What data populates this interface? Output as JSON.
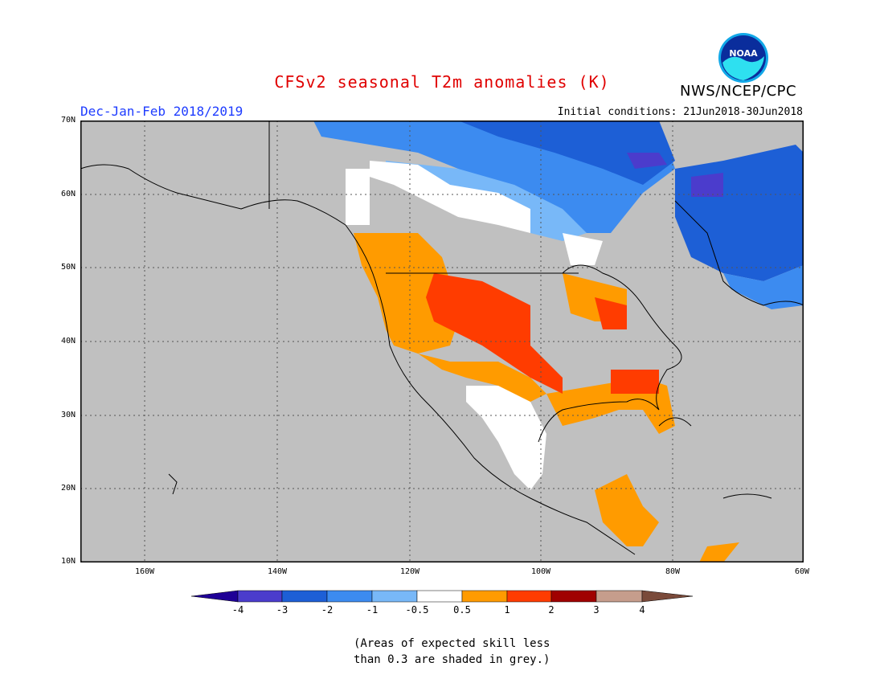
{
  "header": {
    "title": "CFSv2 seasonal T2m anomalies (K)",
    "org": "NWS/NCEP/CPC",
    "season": "Dec-Jan-Feb 2018/2019",
    "initial_conditions": "Initial conditions: 21Jun2018-30Jun2018",
    "logo_text": "NOAA"
  },
  "axes": {
    "lat_labels": [
      "70N",
      "60N",
      "50N",
      "40N",
      "30N",
      "20N",
      "10N"
    ],
    "lon_labels": [
      "160W",
      "140W",
      "120W",
      "100W",
      "80W",
      "60W"
    ]
  },
  "colorbar": {
    "tick_labels": [
      "-4",
      "-3",
      "-2",
      "-1",
      "-0.5",
      "0.5",
      "1",
      "2",
      "3",
      "4"
    ],
    "colors": [
      "#1f0096",
      "#4b3ccc",
      "#1d5fd6",
      "#3c8bf0",
      "#78b8f8",
      "#ffffff",
      "#ff9b00",
      "#ff3c00",
      "#a00000",
      "#c69d8c",
      "#7a4a3a"
    ]
  },
  "note": {
    "line1": "(Areas of expected skill less",
    "line2": "than 0.3 are shaded in grey.)"
  },
  "map": {
    "background_color": "#c0c0c0",
    "categories": {
      "deep_blue": "#1d5fd6",
      "blue": "#3c8bf0",
      "light_blue": "#78b8f8",
      "indigo": "#4b3ccc",
      "white": "#ffffff",
      "orange": "#ff9b00",
      "red": "#ff3c00"
    }
  }
}
